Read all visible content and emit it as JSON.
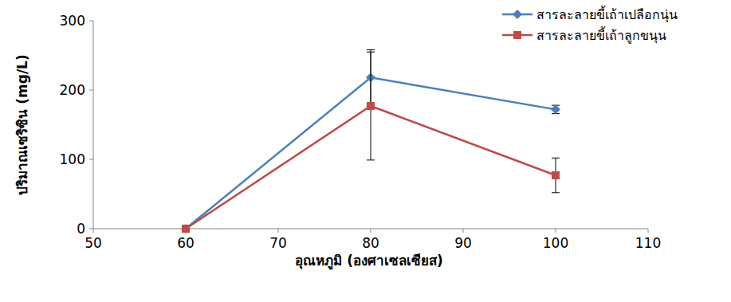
{
  "chart_data": {
    "type": "line",
    "x_label": "อุณหภูมิ (องศาเซลเซียส)",
    "y_label": "ปริมาณเซริซิน (mg/L)",
    "x": [
      60,
      80,
      100
    ],
    "series": [
      {
        "name": "สารละลายขี้เถ้าเปลือกนุ่น",
        "color": "#4a7ebb",
        "marker": "diamond",
        "values": [
          0,
          218,
          172
        ],
        "errors": [
          0,
          40,
          6
        ]
      },
      {
        "name": "สารละลายขี้เถ้าลูกขนุน",
        "color": "#be4b48",
        "marker": "square",
        "values": [
          0,
          177,
          77
        ],
        "errors": [
          0,
          78,
          25
        ]
      }
    ],
    "xlim": [
      50,
      110
    ],
    "xticks": [
      50,
      60,
      70,
      80,
      90,
      100,
      110
    ],
    "ylim": [
      0,
      300
    ],
    "yticks": [
      0,
      100,
      200,
      300
    ],
    "grid": false,
    "legend": "top-right"
  }
}
